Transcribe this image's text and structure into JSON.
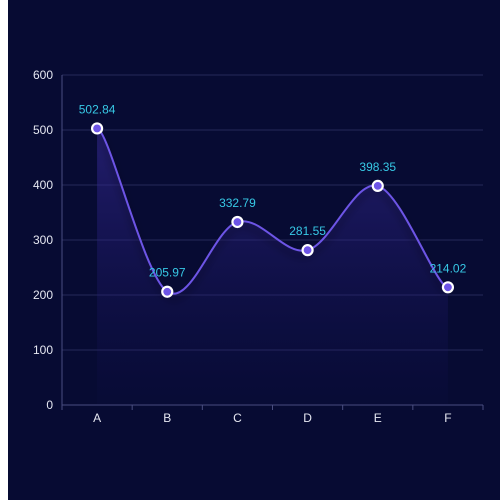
{
  "colors": {
    "panel_background": "#070b33",
    "line": "#6d54e6",
    "marker_fill": "#6d54e6",
    "marker_stroke": "#ffffff",
    "label": "#37c9e6",
    "tick_label": "#e6e8f2",
    "grid": "#25285a",
    "axis": "#4a4e80"
  },
  "chart_data": {
    "type": "line",
    "smooth": true,
    "area_fill": true,
    "title": "",
    "xlabel": "",
    "ylabel": "",
    "categories": [
      "A",
      "B",
      "C",
      "D",
      "E",
      "F"
    ],
    "series": [
      {
        "values": [
          502.84,
          205.97,
          332.79,
          281.55,
          398.35,
          214.02
        ],
        "labels": [
          "502.84",
          "205.97",
          "332.79",
          "281.55",
          "398.35",
          "214.02"
        ]
      }
    ],
    "ylim": [
      0,
      600
    ],
    "y_ticks": [
      0,
      100,
      200,
      300,
      400,
      500,
      600
    ],
    "y_tick_labels": [
      "0",
      "100",
      "200",
      "300",
      "400",
      "500",
      "600"
    ],
    "grid": true,
    "legend": "none"
  }
}
